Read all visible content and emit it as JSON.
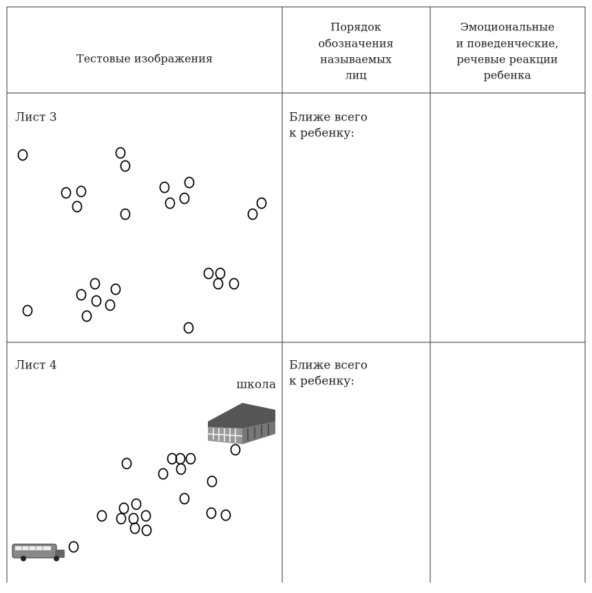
{
  "table": {
    "header": [
      [
        "Тестовые изображения"
      ],
      [
        "Порядок",
        "обозначения",
        "называемых",
        "лиц"
      ],
      [
        "Эмоциональные",
        "и поведенческие,",
        "речевые реакции",
        "ребенка"
      ]
    ],
    "rows": [
      {
        "label": "Лист 3",
        "column2": [
          "Ближе всего",
          "к ребенку:"
        ]
      },
      {
        "label": "Лист 4",
        "annotation": "школа",
        "column2": [
          "Ближе всего",
          "к ребенку:"
        ]
      }
    ]
  }
}
